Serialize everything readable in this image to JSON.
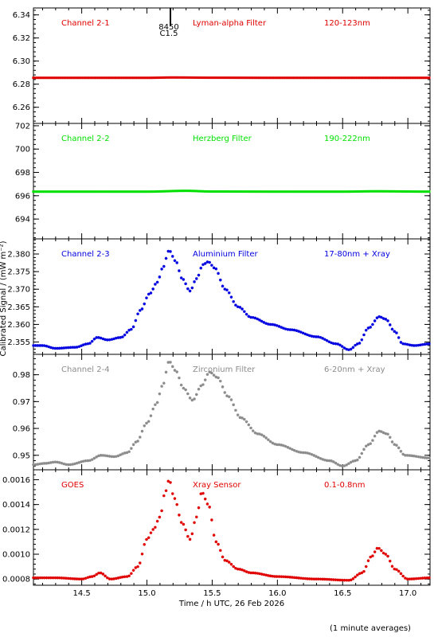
{
  "y_axis_label": "Calibrated Signal / (mW m⁻²)",
  "x_axis_label": "Time / h UTC, 26 Feb 2026",
  "footnote": "(1 minute averages)",
  "x_ticks": [
    "14.5",
    "15.0",
    "15.5",
    "16.0",
    "16.5",
    "17.0"
  ],
  "flare_marker": {
    "number": "8450",
    "class": "C1.5",
    "time": 15.18
  },
  "chart_data": [
    {
      "type": "scatter",
      "channel": "Channel 2-1",
      "filter": "Lyman-alpha Filter",
      "band": "120-123nm",
      "color": "#e00000",
      "ylim": [
        6.246,
        6.346
      ],
      "y_ticks": [
        "6.26",
        "6.28",
        "6.30",
        "6.32",
        "6.34"
      ],
      "x": [
        14.13,
        17.17
      ],
      "points": [
        [
          14.13,
          6.2855
        ],
        [
          14.5,
          6.2855
        ],
        [
          15.0,
          6.2855
        ],
        [
          15.2,
          6.2858
        ],
        [
          15.5,
          6.2856
        ],
        [
          16.0,
          6.2855
        ],
        [
          16.5,
          6.2855
        ],
        [
          17.0,
          6.2855
        ],
        [
          17.17,
          6.2855
        ]
      ]
    },
    {
      "type": "scatter",
      "channel": "Channel 2-2",
      "filter": "Herzberg Filter",
      "band": "190-222nm",
      "color": "#00e000",
      "ylim": [
        692.3,
        702.2
      ],
      "y_ticks": [
        "694",
        "696",
        "698",
        "700",
        "702"
      ],
      "x": [
        14.13,
        17.17
      ],
      "points": [
        [
          14.13,
          696.35
        ],
        [
          14.5,
          696.35
        ],
        [
          15.0,
          696.35
        ],
        [
          15.3,
          696.42
        ],
        [
          15.5,
          696.36
        ],
        [
          16.0,
          696.35
        ],
        [
          16.5,
          696.35
        ],
        [
          16.75,
          696.38
        ],
        [
          17.17,
          696.35
        ]
      ]
    },
    {
      "type": "scatter",
      "channel": "Channel 2-3",
      "filter": "Aluminium Filter",
      "band": "17-80nm + Xray",
      "color": "#0000e0",
      "ylim": [
        2.3515,
        2.3843
      ],
      "y_ticks": [
        "2.355",
        "2.360",
        "2.365",
        "2.370",
        "2.375",
        "2.380"
      ],
      "x": [
        14.13,
        17.17
      ],
      "points": [
        [
          14.13,
          2.354
        ],
        [
          14.2,
          2.354
        ],
        [
          14.3,
          2.3532
        ],
        [
          14.45,
          2.3535
        ],
        [
          14.55,
          2.3545
        ],
        [
          14.62,
          2.3563
        ],
        [
          14.7,
          2.3556
        ],
        [
          14.8,
          2.3563
        ],
        [
          14.88,
          2.3586
        ],
        [
          14.95,
          2.364
        ],
        [
          15.02,
          2.3687
        ],
        [
          15.08,
          2.372
        ],
        [
          15.12,
          2.376
        ],
        [
          15.17,
          2.381
        ],
        [
          15.22,
          2.378
        ],
        [
          15.27,
          2.373
        ],
        [
          15.33,
          2.3695
        ],
        [
          15.38,
          2.373
        ],
        [
          15.43,
          2.377
        ],
        [
          15.47,
          2.3778
        ],
        [
          15.52,
          2.376
        ],
        [
          15.6,
          2.37
        ],
        [
          15.7,
          2.365
        ],
        [
          15.8,
          2.362
        ],
        [
          15.95,
          2.36
        ],
        [
          16.1,
          2.3585
        ],
        [
          16.3,
          2.3565
        ],
        [
          16.45,
          2.3545
        ],
        [
          16.55,
          2.3528
        ],
        [
          16.62,
          2.3545
        ],
        [
          16.7,
          2.359
        ],
        [
          16.78,
          2.3622
        ],
        [
          16.83,
          2.3615
        ],
        [
          16.9,
          2.358
        ],
        [
          16.96,
          2.3545
        ],
        [
          17.05,
          2.354
        ],
        [
          17.17,
          2.3545
        ]
      ]
    },
    {
      "type": "scatter",
      "channel": "Channel 2-4",
      "filter": "Zirconium Filter",
      "band": "6-20nm + Xray",
      "color": "#8c8c8c",
      "ylim": [
        0.9446,
        0.9876
      ],
      "y_ticks": [
        "0.95",
        "0.96",
        "0.97",
        "0.98"
      ],
      "x": [
        14.13,
        17.17
      ],
      "points": [
        [
          14.13,
          0.9465
        ],
        [
          14.22,
          0.947
        ],
        [
          14.3,
          0.9475
        ],
        [
          14.4,
          0.9465
        ],
        [
          14.55,
          0.948
        ],
        [
          14.65,
          0.95
        ],
        [
          14.75,
          0.9495
        ],
        [
          14.85,
          0.951
        ],
        [
          14.92,
          0.955
        ],
        [
          15.0,
          0.962
        ],
        [
          15.07,
          0.969
        ],
        [
          15.12,
          0.976
        ],
        [
          15.17,
          0.985
        ],
        [
          15.22,
          0.9815
        ],
        [
          15.28,
          0.975
        ],
        [
          15.35,
          0.9705
        ],
        [
          15.42,
          0.976
        ],
        [
          15.48,
          0.981
        ],
        [
          15.54,
          0.979
        ],
        [
          15.62,
          0.972
        ],
        [
          15.72,
          0.964
        ],
        [
          15.85,
          0.958
        ],
        [
          16.0,
          0.954
        ],
        [
          16.2,
          0.951
        ],
        [
          16.4,
          0.948
        ],
        [
          16.5,
          0.946
        ],
        [
          16.6,
          0.948
        ],
        [
          16.7,
          0.954
        ],
        [
          16.78,
          0.959
        ],
        [
          16.84,
          0.958
        ],
        [
          16.9,
          0.954
        ],
        [
          16.98,
          0.95
        ],
        [
          17.17,
          0.949
        ]
      ]
    },
    {
      "type": "scatter",
      "channel": "GOES",
      "filter": "Xray Sensor",
      "band": "0.1-0.8nm",
      "color": "#e00000",
      "ylim": [
        0.00075,
        0.00168
      ],
      "y_ticks": [
        "0.0008",
        "0.0010",
        "0.0012",
        "0.0014",
        "0.0016"
      ],
      "x": [
        14.13,
        17.17
      ],
      "points": [
        [
          14.13,
          0.00081
        ],
        [
          14.3,
          0.00081
        ],
        [
          14.5,
          0.0008
        ],
        [
          14.58,
          0.00082
        ],
        [
          14.64,
          0.00085
        ],
        [
          14.72,
          0.0008
        ],
        [
          14.85,
          0.00082
        ],
        [
          14.93,
          0.0009
        ],
        [
          15.0,
          0.00112
        ],
        [
          15.05,
          0.0012
        ],
        [
          15.1,
          0.0013
        ],
        [
          15.14,
          0.0015
        ],
        [
          15.17,
          0.0016
        ],
        [
          15.21,
          0.00145
        ],
        [
          15.27,
          0.00125
        ],
        [
          15.33,
          0.00112
        ],
        [
          15.38,
          0.0013
        ],
        [
          15.42,
          0.0015
        ],
        [
          15.47,
          0.0014
        ],
        [
          15.53,
          0.0011
        ],
        [
          15.6,
          0.00095
        ],
        [
          15.7,
          0.00088
        ],
        [
          15.8,
          0.00085
        ],
        [
          16.0,
          0.00082
        ],
        [
          16.3,
          0.0008
        ],
        [
          16.55,
          0.00079
        ],
        [
          16.65,
          0.00085
        ],
        [
          16.72,
          0.00098
        ],
        [
          16.77,
          0.00105
        ],
        [
          16.83,
          0.001
        ],
        [
          16.9,
          0.00088
        ],
        [
          17.0,
          0.0008
        ],
        [
          17.17,
          0.00081
        ]
      ]
    }
  ]
}
